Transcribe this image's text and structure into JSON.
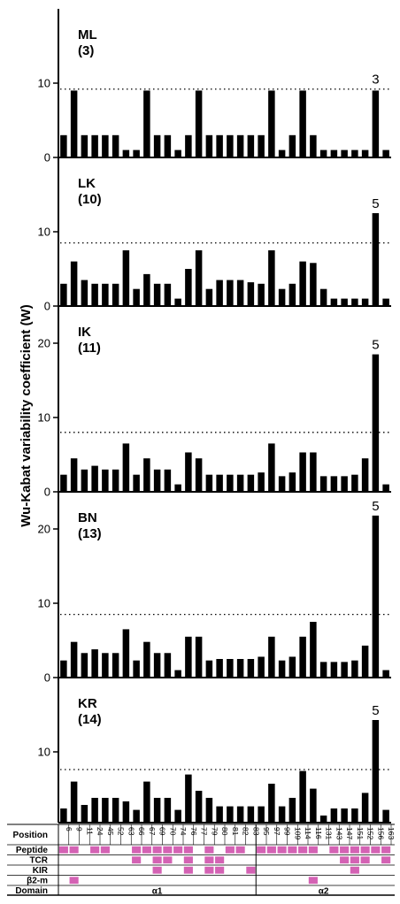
{
  "chart_data": {
    "type": "bar",
    "ylabel": "Wu-Kabat variability coefficient (W)",
    "positions": [
      "6",
      "9",
      "11",
      "24",
      "45",
      "52",
      "63",
      "66",
      "67",
      "69",
      "70",
      "74",
      "76",
      "77",
      "79",
      "80",
      "81",
      "82",
      "83",
      "95",
      "97",
      "99",
      "109",
      "114",
      "116",
      "131",
      "143",
      "147",
      "151",
      "152",
      "156",
      "163"
    ],
    "series": [
      {
        "name": "ML",
        "count": "(3)",
        "ymax": 20,
        "yticks": [
          0,
          10
        ],
        "threshold": 9.2,
        "annotation": "3",
        "values": [
          3,
          9,
          3,
          3,
          3,
          3,
          1,
          1,
          9,
          3,
          3,
          1,
          3,
          9,
          3,
          3,
          3,
          3,
          3,
          3,
          9,
          1,
          3,
          9,
          3,
          1,
          1,
          1,
          1,
          1,
          9,
          1
        ]
      },
      {
        "name": "LK",
        "count": "(10)",
        "ymax": 20,
        "yticks": [
          0,
          10
        ],
        "threshold": 8.5,
        "annotation": "5",
        "values": [
          3,
          6,
          3.5,
          3,
          3,
          3,
          7.5,
          2.3,
          4.3,
          3,
          3,
          1,
          5,
          7.5,
          2.3,
          3.5,
          3.5,
          3.5,
          3.2,
          3,
          7.5,
          2.3,
          3,
          6,
          5.8,
          2.3,
          1,
          1,
          1,
          1,
          12.5,
          1
        ]
      },
      {
        "name": "IK",
        "count": "(11)",
        "ymax": 25,
        "yticks": [
          0,
          10,
          20
        ],
        "threshold": 8,
        "annotation": "5",
        "values": [
          2.3,
          4.5,
          3,
          3.5,
          3,
          3,
          6.5,
          2.3,
          4.5,
          3,
          3,
          1,
          5.3,
          4.5,
          2.3,
          2.3,
          2.3,
          2.3,
          2.3,
          2.6,
          6.5,
          2.1,
          2.6,
          5.3,
          5.3,
          2.1,
          2.1,
          2.1,
          2.3,
          4.5,
          18.5,
          1
        ]
      },
      {
        "name": "BN",
        "count": "(13)",
        "ymax": 25,
        "yticks": [
          0,
          10,
          20
        ],
        "threshold": 8.5,
        "annotation": "5",
        "values": [
          2.3,
          4.8,
          3.3,
          3.8,
          3.3,
          3.3,
          6.5,
          2.3,
          4.8,
          3.3,
          3.3,
          1,
          5.5,
          5.5,
          2.3,
          2.5,
          2.5,
          2.5,
          2.5,
          2.8,
          5.5,
          2.3,
          2.8,
          5.5,
          7.5,
          2.1,
          2.1,
          2.1,
          2.3,
          4.3,
          21.8,
          1
        ]
      },
      {
        "name": "KR",
        "count": "(14)",
        "ymax": 20,
        "yticks": [
          10
        ],
        "threshold": 7.5,
        "annotation": "5",
        "values": [
          2,
          5.8,
          2.5,
          3.5,
          3.5,
          3.5,
          3,
          1.8,
          5.8,
          3.5,
          3.5,
          1.8,
          6.8,
          4.5,
          3.5,
          2.3,
          2.3,
          2.3,
          2.3,
          2.3,
          5.5,
          2.3,
          3.5,
          7.3,
          4.8,
          1,
          2,
          2,
          2,
          4.2,
          14.5,
          1.8
        ]
      }
    ],
    "table": {
      "position_label": "Position",
      "rows": [
        {
          "label": "Peptide",
          "marks": [
            1,
            2,
            4,
            5,
            8,
            9,
            10,
            11,
            12,
            13,
            15,
            17,
            18,
            20,
            21,
            22,
            23,
            24,
            25,
            27,
            28,
            29,
            30,
            31,
            32
          ]
        },
        {
          "label": "TCR",
          "marks": [
            8,
            10,
            11,
            13,
            15,
            16,
            28,
            29,
            30,
            32
          ]
        },
        {
          "label": "KIR",
          "marks": [
            10,
            13,
            15,
            16,
            19,
            29
          ]
        },
        {
          "label": "β2-m",
          "marks": [
            2,
            25
          ]
        }
      ],
      "domain_label": "Domain",
      "domains": [
        {
          "label": "α1",
          "start": 1,
          "end": 19
        },
        {
          "label": "α2",
          "start": 20,
          "end": 32
        }
      ]
    },
    "colors": {
      "bar": "#000000",
      "mark": "#d462b4"
    }
  }
}
